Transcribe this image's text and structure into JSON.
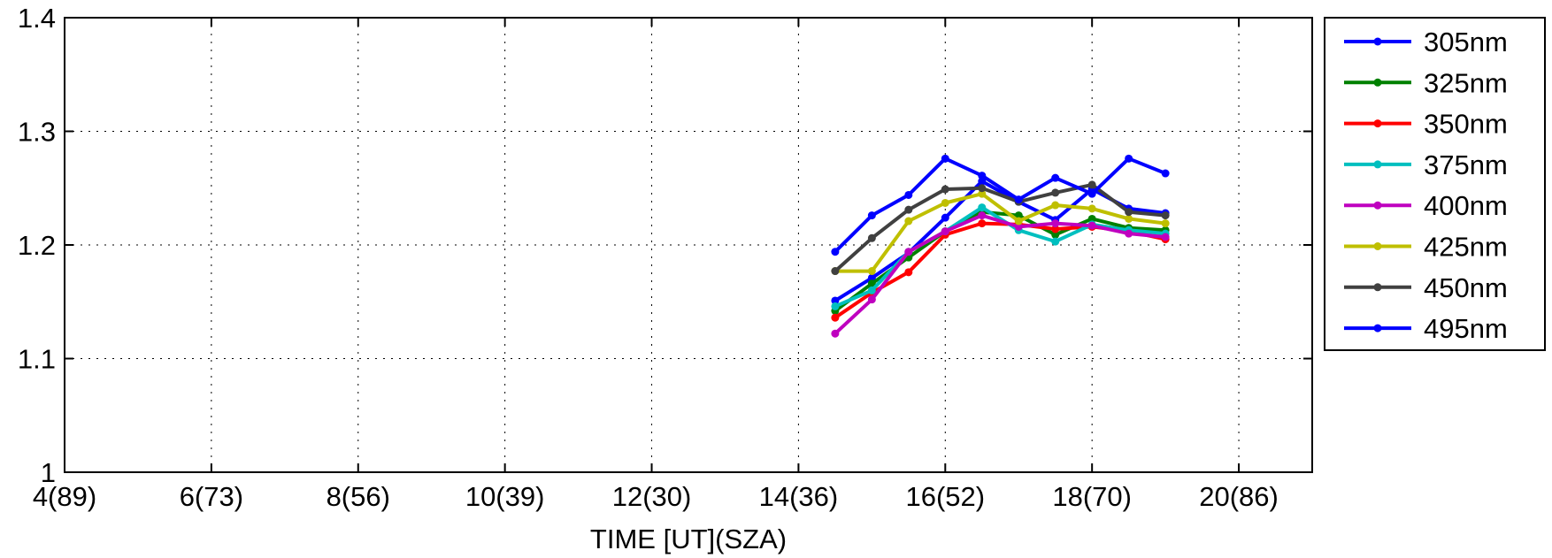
{
  "chart_data": {
    "type": "line",
    "title": "",
    "xlabel": "TIME [UT](SZA)",
    "ylabel": "",
    "xlim": [
      4,
      21
    ],
    "ylim": [
      1,
      1.4
    ],
    "x_ticks": [
      4,
      6,
      8,
      10,
      12,
      14,
      16,
      18,
      20
    ],
    "x_tick_labels": [
      "4(89)",
      "6(73)",
      "8(56)",
      "10(39)",
      "12(30)",
      "14(36)",
      "16(52)",
      "18(70)",
      "20(86)"
    ],
    "y_ticks": [
      1,
      1.1,
      1.2,
      1.3,
      1.4
    ],
    "y_tick_labels": [
      "1",
      "1.1",
      "1.2",
      "1.3",
      "1.4"
    ],
    "grid": true,
    "legend_position": "outside-right-top",
    "x": [
      14.5,
      15,
      15.5,
      16,
      16.5,
      17,
      17.5,
      18,
      18.5,
      19
    ],
    "series": [
      {
        "name": "305nm",
        "color": "#0000ff",
        "values": [
          1.151,
          1.171,
          1.193,
          1.224,
          1.256,
          1.238,
          1.222,
          1.249,
          1.232,
          1.228
        ]
      },
      {
        "name": "325nm",
        "color": "#008000",
        "values": [
          1.142,
          1.166,
          1.189,
          1.212,
          1.229,
          1.226,
          1.209,
          1.223,
          1.215,
          1.213
        ]
      },
      {
        "name": "350nm",
        "color": "#ff0000",
        "values": [
          1.136,
          1.158,
          1.176,
          1.209,
          1.219,
          1.218,
          1.214,
          1.216,
          1.212,
          1.205
        ]
      },
      {
        "name": "375nm",
        "color": "#00bfbf",
        "values": [
          1.146,
          1.16,
          1.194,
          1.212,
          1.233,
          1.213,
          1.203,
          1.218,
          1.213,
          1.21
        ]
      },
      {
        "name": "400nm",
        "color": "#bf00bf",
        "values": [
          1.122,
          1.152,
          1.194,
          1.212,
          1.226,
          1.216,
          1.219,
          1.217,
          1.21,
          1.207
        ]
      },
      {
        "name": "425nm",
        "color": "#bfbf00",
        "values": [
          1.177,
          1.177,
          1.221,
          1.237,
          1.245,
          1.221,
          1.235,
          1.232,
          1.223,
          1.219
        ]
      },
      {
        "name": "450nm",
        "color": "#404040",
        "values": [
          1.177,
          1.206,
          1.231,
          1.249,
          1.25,
          1.238,
          1.246,
          1.253,
          1.229,
          1.226
        ]
      },
      {
        "name": "495nm",
        "color": "#0000ff",
        "values": [
          1.194,
          1.226,
          1.244,
          1.276,
          1.261,
          1.24,
          1.259,
          1.245,
          1.276,
          1.263
        ]
      }
    ]
  }
}
